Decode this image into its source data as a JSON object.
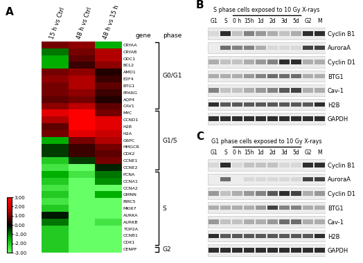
{
  "chart_data": {
    "type": "heatmap",
    "panel": "A",
    "columns": [
      "15 h vs Ctrl",
      "48 h vs Ctrl",
      "48 h vs 15 h"
    ],
    "rows": [
      "CRYAA",
      "CRYAB",
      "ODC1",
      "BCL2",
      "AMD1",
      "E2F4",
      "BTG1",
      "PPARG",
      "AQP4",
      "CAV1",
      "MYC",
      "CCND1",
      "H2B",
      "H2A",
      "G6PC",
      "HMGCR",
      "CDK2",
      "CCNE1",
      "CCNE2",
      "PCNA",
      "CCNA1",
      "CCNA2",
      "GMNN",
      "BIRC5",
      "MKI67",
      "AURKA",
      "AURKB",
      "TOP2A",
      "CCNB1",
      "CDK1",
      "CENPF"
    ],
    "values": [
      [
        1.0,
        1.2,
        -1.5
      ],
      [
        -1.0,
        1.0,
        1.5
      ],
      [
        -1.5,
        0.8,
        1.5
      ],
      [
        -1.5,
        0.5,
        1.2
      ],
      [
        1.0,
        1.2,
        0.3
      ],
      [
        1.2,
        1.5,
        0.5
      ],
      [
        1.0,
        1.5,
        0.8
      ],
      [
        1.0,
        1.2,
        0.5
      ],
      [
        0.8,
        1.0,
        0.3
      ],
      [
        1.2,
        1.8,
        0.8
      ],
      [
        2.5,
        3.0,
        1.0
      ],
      [
        1.5,
        3.0,
        2.5
      ],
      [
        0.8,
        3.0,
        2.5
      ],
      [
        1.0,
        2.5,
        2.0
      ],
      [
        -1.5,
        1.0,
        1.5
      ],
      [
        -0.5,
        0.5,
        1.0
      ],
      [
        -0.5,
        0.5,
        0.8
      ],
      [
        -2.0,
        -0.5,
        1.0
      ],
      [
        -2.5,
        -3.0,
        -0.3
      ],
      [
        -1.5,
        -2.5,
        -1.0
      ],
      [
        -2.0,
        -3.0,
        -1.2
      ],
      [
        -2.5,
        -3.0,
        -3.0
      ],
      [
        -2.0,
        -3.0,
        -1.5
      ],
      [
        -2.5,
        -3.0,
        -3.0
      ],
      [
        -2.0,
        -3.0,
        -3.0
      ],
      [
        -0.2,
        -3.0,
        -3.0
      ],
      [
        -1.0,
        -3.0,
        -2.5
      ],
      [
        -2.0,
        -3.0,
        -3.0
      ],
      [
        -2.0,
        -3.0,
        -3.0
      ],
      [
        -2.0,
        -3.0,
        -3.0
      ],
      [
        -2.0,
        -3.0,
        -3.0
      ]
    ],
    "colorbar": {
      "range": [
        -3,
        3
      ],
      "ticks": [
        {
          "value": 3,
          "label": "3.00"
        },
        {
          "value": 2,
          "label": "2.00"
        },
        {
          "value": 1,
          "label": "1.00"
        },
        {
          "value": 0,
          "label": "0.00"
        },
        {
          "value": -1,
          "label": "-1.00"
        },
        {
          "value": -2,
          "label": "-2.00"
        },
        {
          "value": -3,
          "label": "-3.00"
        }
      ]
    },
    "row_header": "gene",
    "group_header": "phase",
    "groups": [
      {
        "label": "G0/G1",
        "rows": [
          "CRYAA",
          "CAV1"
        ]
      },
      {
        "label": "G1/S",
        "rows": [
          "MYC",
          "CCNE2"
        ]
      },
      {
        "label": "S",
        "rows": [
          "PCNA",
          "CDK1"
        ]
      },
      {
        "label": "G2",
        "rows": [
          "CENPF",
          "CENPF"
        ]
      }
    ]
  },
  "blots": [
    {
      "panel": "B",
      "title": "S phase cells exposed to 10 Gy X-rays",
      "lanes": [
        "G1",
        "S",
        "0 h",
        "15h",
        "1d",
        "2d",
        "3d",
        "5d",
        "G2",
        "M"
      ],
      "treated_lanes": [
        "0 h",
        "5d"
      ],
      "proteins": [
        "Cyclin B1",
        "AuroraA",
        "Cyclin D1",
        "BTG1",
        "Cav-1",
        "H2B",
        "GAPDH"
      ],
      "intensities": [
        [
          0.1,
          0.9,
          0.2,
          0.5,
          0.4,
          0.3,
          0.2,
          0.3,
          0.9,
          0.9
        ],
        [
          0.0,
          0.6,
          0.5,
          0.5,
          0.3,
          0.1,
          0.1,
          0.1,
          0.8,
          0.8
        ],
        [
          0.3,
          0.2,
          0.2,
          0.3,
          0.4,
          0.5,
          0.9,
          0.9,
          0.3,
          0.3
        ],
        [
          0.3,
          0.3,
          0.3,
          0.4,
          0.5,
          0.6,
          0.6,
          0.6,
          0.3,
          0.3
        ],
        [
          0.5,
          0.2,
          0.2,
          0.3,
          0.4,
          0.5,
          0.7,
          0.8,
          0.3,
          0.3
        ],
        [
          0.9,
          0.7,
          0.7,
          0.7,
          0.7,
          0.7,
          0.7,
          0.7,
          0.7,
          0.9
        ],
        [
          0.9,
          0.9,
          0.9,
          0.9,
          0.9,
          0.9,
          0.9,
          0.9,
          0.9,
          0.9
        ]
      ]
    },
    {
      "panel": "C",
      "title": "G1 phase cells exposed to 10 Gy X-rays",
      "lanes": [
        "G1",
        "S",
        "0 h",
        "15h",
        "1d",
        "2d",
        "3d",
        "5d",
        "G2",
        "M"
      ],
      "treated_lanes": [
        "0 h",
        "5d"
      ],
      "proteins": [
        "Cyclin B1",
        "AuroraA",
        "Cyclin D1",
        "BTG1",
        "Cav-1",
        "H2B",
        "GAPDH"
      ],
      "intensities": [
        [
          0.1,
          0.9,
          0.1,
          0.2,
          0.2,
          0.2,
          0.1,
          0.1,
          0.9,
          0.9
        ],
        [
          0.0,
          0.6,
          0.0,
          0.1,
          0.1,
          0.1,
          0.1,
          0.1,
          0.8,
          0.8
        ],
        [
          0.4,
          0.2,
          0.3,
          0.4,
          0.5,
          0.7,
          0.9,
          0.8,
          0.3,
          0.4
        ],
        [
          0.3,
          0.3,
          0.3,
          0.3,
          0.4,
          0.8,
          0.5,
          0.5,
          0.3,
          0.3
        ],
        [
          0.4,
          0.2,
          0.2,
          0.3,
          0.3,
          0.4,
          0.6,
          0.6,
          0.3,
          0.3
        ],
        [
          0.9,
          0.7,
          0.7,
          0.7,
          0.7,
          0.7,
          0.7,
          0.7,
          0.7,
          0.9
        ],
        [
          0.9,
          0.9,
          0.9,
          0.9,
          0.9,
          0.9,
          0.9,
          0.9,
          0.9,
          0.9
        ]
      ]
    }
  ]
}
